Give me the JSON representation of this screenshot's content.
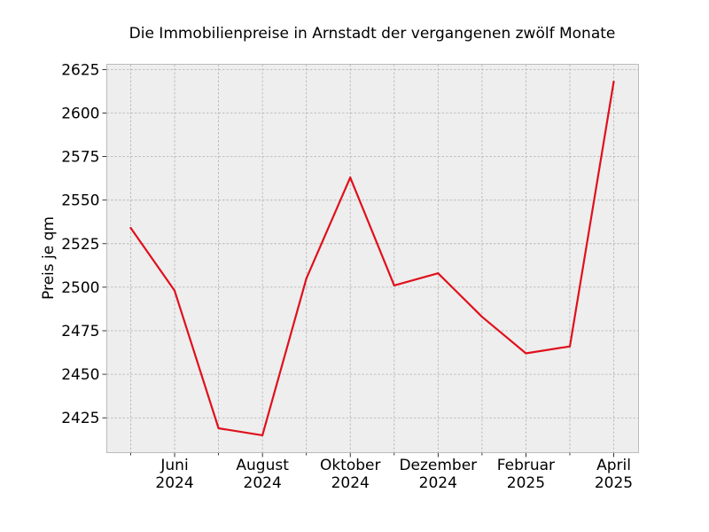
{
  "chart_data": {
    "type": "line",
    "title": "Die Immobilienpreise in Arnstadt der vergangenen zwölf Monate",
    "xlabel": "",
    "ylabel": "Preis je qm",
    "x": [
      "2024-05",
      "2024-06",
      "2024-07",
      "2024-08",
      "2024-09",
      "2024-10",
      "2024-11",
      "2024-12",
      "2025-01",
      "2025-02",
      "2025-03",
      "2025-04"
    ],
    "series": [
      {
        "values": [
          2534,
          2498,
          2419,
          2415,
          2505,
          2563,
          2501,
          2508,
          2483,
          2462,
          2466,
          2618
        ]
      }
    ],
    "ylim": [
      2405,
      2628
    ],
    "yticks": [
      2425,
      2450,
      2475,
      2500,
      2525,
      2550,
      2575,
      2600,
      2625
    ],
    "xticks": [
      {
        "month": "2024-06",
        "label1": "Juni",
        "label2": "2024"
      },
      {
        "month": "2024-08",
        "label1": "August",
        "label2": "2024"
      },
      {
        "month": "2024-10",
        "label1": "Oktober",
        "label2": "2024"
      },
      {
        "month": "2024-12",
        "label1": "Dezember",
        "label2": "2024"
      },
      {
        "month": "2025-02",
        "label1": "Februar",
        "label2": "2025"
      },
      {
        "month": "2025-04",
        "label1": "April",
        "label2": "2025"
      }
    ],
    "grid": true,
    "colors": {
      "line": "#e0101c",
      "plot_background": "#eeeeee",
      "grid": "#b0b0b0",
      "frame": "#bcbcbc"
    }
  }
}
